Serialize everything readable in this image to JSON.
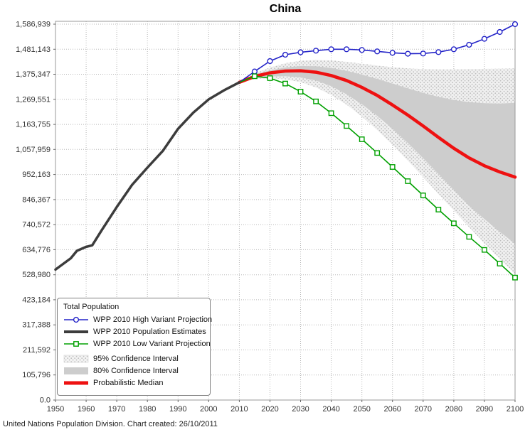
{
  "title": "China",
  "footer": {
    "text": "United Nations Population Division. Chart created: 26/10/2011"
  },
  "legend": {
    "title": "Total Population",
    "items": [
      {
        "label": "WPP 2010 High Variant Projection",
        "type": "line-marker",
        "marker": "circle",
        "color": "#2424c8"
      },
      {
        "label": "WPP 2010 Population Estimates",
        "type": "line",
        "color": "#3c3c3c"
      },
      {
        "label": "WPP 2010 Low Variant Projection",
        "type": "line-marker",
        "marker": "square",
        "color": "#00a000"
      },
      {
        "label": "95% Confidence Interval",
        "type": "fill",
        "fill": "dots",
        "color": "#f0f0f0"
      },
      {
        "label": "80% Confidence Interval",
        "type": "fill",
        "fill": "#cdcdcd",
        "color": "#cdcdcd"
      },
      {
        "label": "Probabilistic Median",
        "type": "line-thick",
        "color": "#ee1111"
      }
    ]
  },
  "chart_data": {
    "type": "line",
    "title": "China",
    "xlabel": "",
    "ylabel": "",
    "xlim": [
      1950,
      2100
    ],
    "ylim": [
      0,
      1586939
    ],
    "grid": true,
    "legend_position": "bottom-left",
    "ci95_base_color": "#f0f0f0",
    "ci95_dot_color": "#bdbdbd",
    "x_ticks": [
      1950,
      1960,
      1970,
      1980,
      1990,
      2000,
      2010,
      2020,
      2030,
      2040,
      2050,
      2060,
      2070,
      2080,
      2090,
      2100
    ],
    "y_ticks": [
      {
        "value": 0,
        "label": "0.0"
      },
      {
        "value": 105796,
        "label": "105,796"
      },
      {
        "value": 211592,
        "label": "211,592"
      },
      {
        "value": 317388,
        "label": "317,388"
      },
      {
        "value": 423184,
        "label": "423,184"
      },
      {
        "value": 528980,
        "label": "528,980"
      },
      {
        "value": 634776,
        "label": "634,776"
      },
      {
        "value": 740572,
        "label": "740,572"
      },
      {
        "value": 846367,
        "label": "846,367"
      },
      {
        "value": 952163,
        "label": "952,163"
      },
      {
        "value": 1057959,
        "label": "1,057,959"
      },
      {
        "value": 1163755,
        "label": "1,163,755"
      },
      {
        "value": 1269551,
        "label": "1,269,551"
      },
      {
        "value": 1375347,
        "label": "1,375,347"
      },
      {
        "value": 1481143,
        "label": "1,481,143"
      },
      {
        "value": 1586939,
        "label": "1,586,939"
      }
    ],
    "projection_years": [
      2010,
      2015,
      2020,
      2025,
      2030,
      2035,
      2040,
      2045,
      2050,
      2055,
      2060,
      2065,
      2070,
      2075,
      2080,
      2085,
      2090,
      2095,
      2100
    ],
    "bands": [
      {
        "name": "95% Confidence Interval",
        "fill": "dots",
        "upper": [
          1341335,
          1379000,
          1404000,
          1422000,
          1432000,
          1436000,
          1434000,
          1428000,
          1420000,
          1412000,
          1405000,
          1400000,
          1397000,
          1396000,
          1396000,
          1397000,
          1398000,
          1399000,
          1400000
        ],
        "lower": [
          1341335,
          1355000,
          1358000,
          1354000,
          1342000,
          1320000,
          1288000,
          1247000,
          1197000,
          1140000,
          1077000,
          1010000,
          941000,
          870000,
          800000,
          730000,
          662000,
          596000,
          532000
        ]
      },
      {
        "name": "80% Confidence Interval",
        "fill": "#cdcdcd",
        "upper": [
          1341335,
          1373000,
          1392000,
          1404000,
          1410000,
          1409000,
          1402000,
          1390000,
          1374000,
          1356000,
          1336000,
          1316000,
          1297000,
          1280000,
          1267000,
          1258000,
          1253000,
          1252000,
          1255000
        ],
        "lower": [
          1341335,
          1358000,
          1366000,
          1367000,
          1362000,
          1349000,
          1325000,
          1291000,
          1249000,
          1200000,
          1145000,
          1085000,
          1021000,
          955000,
          887000,
          820000,
          764000,
          710000,
          660000
        ]
      }
    ],
    "series": [
      {
        "name": "Probabilistic Median",
        "color": "#ee1111",
        "width": 4.5,
        "marker": "none",
        "points": [
          [
            2010,
            1341335
          ],
          [
            2015,
            1366000
          ],
          [
            2020,
            1381000
          ],
          [
            2025,
            1389000
          ],
          [
            2030,
            1390000
          ],
          [
            2035,
            1384000
          ],
          [
            2040,
            1370000
          ],
          [
            2045,
            1349000
          ],
          [
            2050,
            1320000
          ],
          [
            2055,
            1286000
          ],
          [
            2060,
            1246000
          ],
          [
            2065,
            1203000
          ],
          [
            2070,
            1157000
          ],
          [
            2075,
            1109000
          ],
          [
            2080,
            1063000
          ],
          [
            2085,
            1022000
          ],
          [
            2090,
            989000
          ],
          [
            2095,
            963000
          ],
          [
            2100,
            941000
          ]
        ]
      },
      {
        "name": "WPP 2010 High Variant Projection",
        "color": "#2424c8",
        "width": 1.6,
        "marker": "circle",
        "points": [
          [
            2010,
            1341335
          ],
          [
            2015,
            1387000
          ],
          [
            2020,
            1431000
          ],
          [
            2025,
            1458000
          ],
          [
            2030,
            1468000
          ],
          [
            2035,
            1475000
          ],
          [
            2040,
            1481000
          ],
          [
            2045,
            1481000
          ],
          [
            2050,
            1478000
          ],
          [
            2055,
            1472000
          ],
          [
            2060,
            1466000
          ],
          [
            2065,
            1462000
          ],
          [
            2070,
            1463000
          ],
          [
            2075,
            1469000
          ],
          [
            2080,
            1481000
          ],
          [
            2085,
            1500000
          ],
          [
            2090,
            1525000
          ],
          [
            2095,
            1554000
          ],
          [
            2100,
            1586939
          ]
        ]
      },
      {
        "name": "WPP 2010 Low Variant Projection",
        "color": "#00a000",
        "width": 1.6,
        "marker": "square",
        "points": [
          [
            2010,
            1341335
          ],
          [
            2015,
            1367000
          ],
          [
            2020,
            1359000
          ],
          [
            2025,
            1336000
          ],
          [
            2030,
            1302000
          ],
          [
            2035,
            1261000
          ],
          [
            2040,
            1211000
          ],
          [
            2045,
            1157000
          ],
          [
            2050,
            1101000
          ],
          [
            2055,
            1043000
          ],
          [
            2060,
            984000
          ],
          [
            2065,
            924000
          ],
          [
            2070,
            864000
          ],
          [
            2075,
            804000
          ],
          [
            2080,
            746000
          ],
          [
            2085,
            689000
          ],
          [
            2090,
            634000
          ],
          [
            2095,
            576000
          ],
          [
            2100,
            517000
          ]
        ]
      },
      {
        "name": "WPP 2010 Population Estimates",
        "color": "#3c3c3c",
        "width": 3.5,
        "marker": "none",
        "points": [
          [
            1950,
            550771
          ],
          [
            1955,
            598574
          ],
          [
            1957,
            630000
          ],
          [
            1960,
            646703
          ],
          [
            1962,
            653302
          ],
          [
            1965,
            715185
          ],
          [
            1970,
            814623
          ],
          [
            1975,
            908621
          ],
          [
            1980,
            981235
          ],
          [
            1985,
            1051040
          ],
          [
            1990,
            1145195
          ],
          [
            1995,
            1213707
          ],
          [
            2000,
            1269117
          ],
          [
            2005,
            1307593
          ],
          [
            2010,
            1341335
          ]
        ]
      }
    ]
  }
}
